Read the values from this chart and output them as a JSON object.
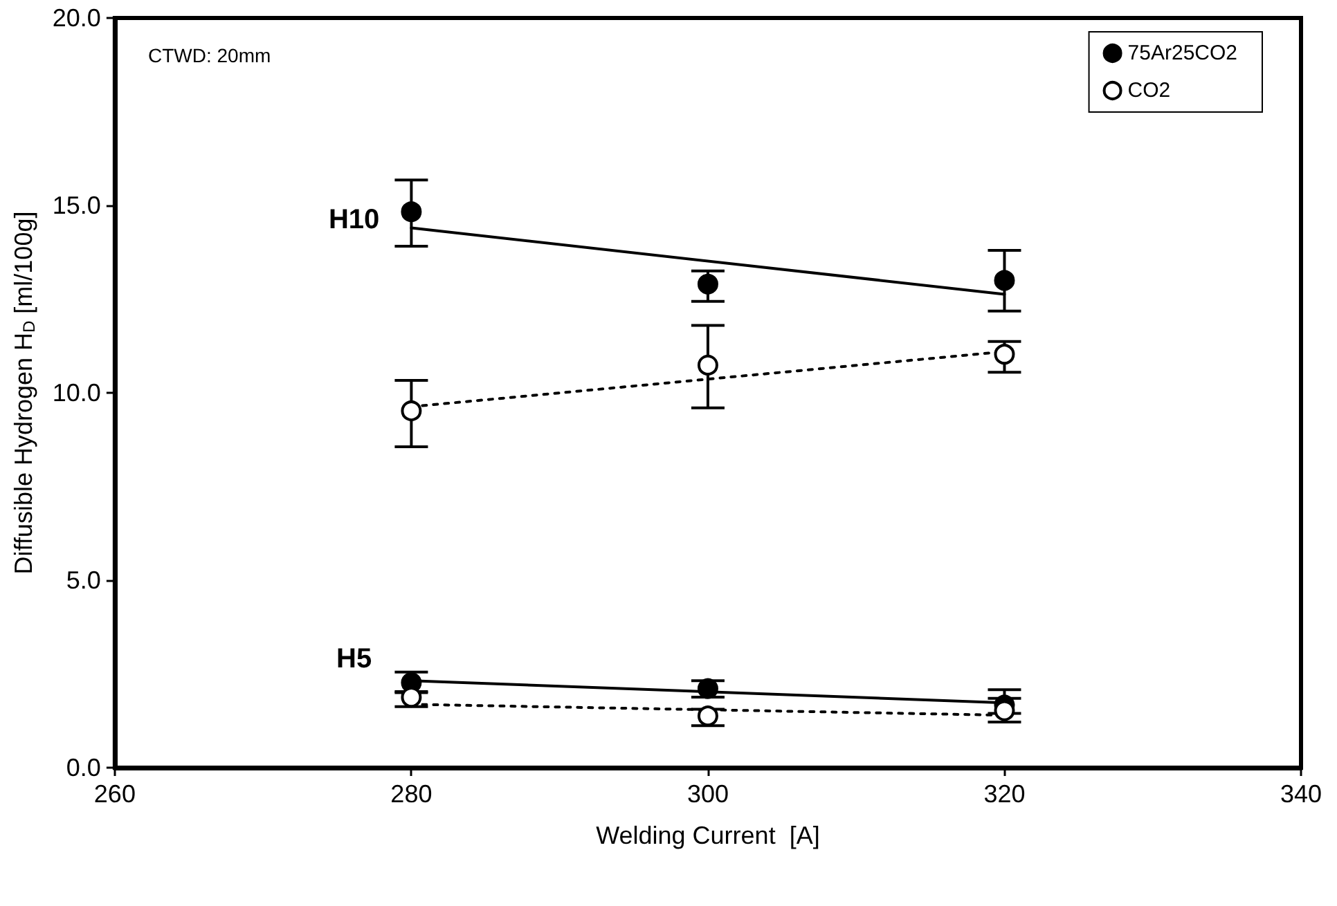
{
  "chart_data": {
    "type": "scatter",
    "xlabel": "Welding Current  [A]",
    "ylabel": "Diffusible Hydrogen H$_{D}$ [ml/100g]",
    "annotations": [
      "CTWD: 20mm",
      "H10",
      "H5"
    ],
    "xlim": [
      260,
      340
    ],
    "xticks": [
      260,
      280,
      300,
      320,
      340
    ],
    "ylim": [
      0,
      20
    ],
    "yticks": [
      {
        "value": 0,
        "label": "0.0"
      },
      {
        "value": 5,
        "label": "5.0"
      },
      {
        "value": 10,
        "label": "10.0"
      },
      {
        "value": 15,
        "label": "15.0"
      },
      {
        "value": 20,
        "label": "20.0"
      }
    ],
    "grid": false,
    "legend": "top right",
    "marker": "circle",
    "series": [
      {
        "name": "75Ar25CO2",
        "color": "#000000",
        "x": [
          280,
          300,
          320,
          280,
          300,
          320
        ],
        "values": [
          14.83,
          12.9,
          13.0,
          2.27,
          2.11,
          1.67
        ],
        "errors": [
          [
            13.91,
            15.68
          ],
          [
            12.44,
            13.25
          ],
          [
            12.18,
            13.8
          ],
          [
            2.0,
            2.55
          ],
          [
            1.88,
            2.32
          ],
          [
            1.45,
            2.08
          ]
        ]
      },
      {
        "name": "CO2",
        "color": "#ffffff",
        "x": [
          280,
          300,
          320,
          280,
          300,
          320
        ],
        "values": [
          9.52,
          10.74,
          11.03,
          1.88,
          1.38,
          1.52
        ],
        "errors": [
          [
            8.56,
            10.33
          ],
          [
            9.6,
            11.8
          ],
          [
            10.55,
            11.37
          ],
          [
            1.63,
            2.03
          ],
          [
            1.12,
            1.56
          ],
          [
            1.22,
            1.85
          ]
        ]
      },
      {
        "type": "line",
        "color": "#000000",
        "line_style": "solid",
        "marker": "none",
        "x": [
          280,
          320
        ],
        "values": [
          14.4,
          12.63
        ]
      },
      {
        "type": "line",
        "color": "#000000",
        "line_style": "dotted",
        "marker": "none",
        "x": [
          280,
          320
        ],
        "values": [
          9.63,
          11.1
        ]
      },
      {
        "type": "line",
        "color": "#000000",
        "line_style": "solid",
        "marker": "none",
        "x": [
          280,
          320
        ],
        "values": [
          2.32,
          1.73
        ]
      },
      {
        "type": "line",
        "color": "#000000",
        "line_style": "dotted",
        "marker": "none",
        "x": [
          280,
          320
        ],
        "values": [
          1.69,
          1.4
        ]
      }
    ]
  }
}
